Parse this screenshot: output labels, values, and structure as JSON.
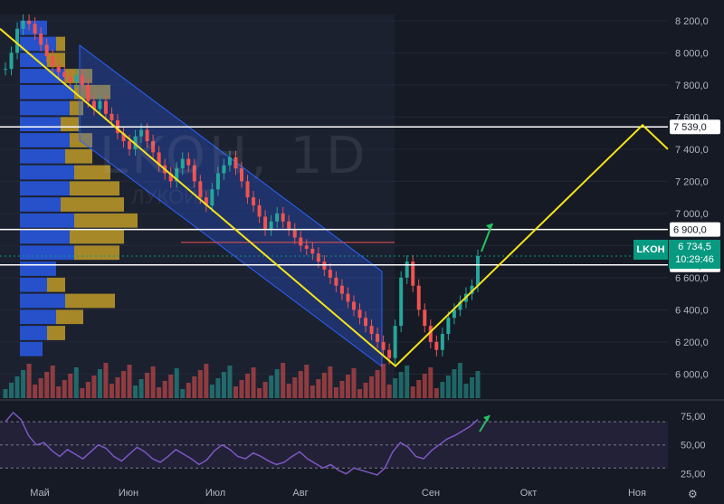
{
  "chart_data": [
    {
      "type": "candlestick",
      "ticker": "LKOH",
      "timeframe": "1D",
      "ylim": [
        5850,
        8250
      ],
      "y_ticks": [
        "8 200,0",
        "8 000,0",
        "7 800,0",
        "7 600,0",
        "7 400,0",
        "7 200,0",
        "7 000,0",
        "6 800,0",
        "6 600,0",
        "6 400,0",
        "6 200,0",
        "6 000,0"
      ],
      "x_ticks": [
        "Май",
        "Июн",
        "Июл",
        "Авг",
        "Сен",
        "Окт",
        "Ноя"
      ],
      "horizontal_levels": [
        {
          "value": 7539.0,
          "label": "7 539,0"
        },
        {
          "value": 6900.0,
          "label": "6 900,0"
        },
        {
          "value": 6679.5,
          "label": "6 679,5"
        }
      ],
      "last_price": {
        "value": 6734.5,
        "label": "6 734,5",
        "countdown": "10:29:46",
        "ticker": "LKOH"
      },
      "candles_close": [
        7900,
        8000,
        8150,
        8200,
        8180,
        8120,
        8050,
        7980,
        7920,
        7880,
        7850,
        7820,
        7860,
        7800,
        7700,
        7650,
        7700,
        7620,
        7580,
        7500,
        7450,
        7400,
        7480,
        7520,
        7450,
        7380,
        7300,
        7250,
        7200,
        7280,
        7340,
        7300,
        7200,
        7100,
        7050,
        7150,
        7250,
        7300,
        7350,
        7280,
        7200,
        7100,
        7050,
        6980,
        6900,
        6950,
        7000,
        6950,
        6900,
        6850,
        6800,
        6780,
        6750,
        6700,
        6650,
        6600,
        6550,
        6500,
        6450,
        6400,
        6350,
        6300,
        6250,
        6200,
        6150,
        6100,
        6300,
        6600,
        6700,
        6550,
        6400,
        6300,
        6200,
        6150,
        6250,
        6350,
        6400,
        6450,
        6500,
        6550,
        6734.5
      ],
      "projection_line": [
        {
          "x": "start",
          "y": 8150
        },
        {
          "x": "Авг-end",
          "y": 6050
        },
        {
          "x": "Ноя",
          "y": 7550
        },
        {
          "x": "end",
          "y": 7400
        }
      ],
      "volume_profile": true
    },
    {
      "type": "line",
      "name": "RSI",
      "ylim": [
        20,
        85
      ],
      "y_ticks": [
        "75,00",
        "50,00",
        "25,00"
      ],
      "band": [
        30,
        70
      ],
      "values": [
        70,
        78,
        72,
        58,
        50,
        52,
        45,
        40,
        46,
        42,
        38,
        44,
        50,
        47,
        40,
        36,
        42,
        48,
        44,
        38,
        35,
        40,
        46,
        42,
        38,
        33,
        37,
        45,
        50,
        46,
        40,
        38,
        43,
        40,
        36,
        33,
        35,
        40,
        44,
        38,
        34,
        30,
        33,
        28,
        25,
        30,
        28,
        26,
        24,
        30,
        44,
        52,
        48,
        40,
        38,
        45,
        50,
        55,
        58,
        62,
        66,
        72
      ]
    }
  ]
}
